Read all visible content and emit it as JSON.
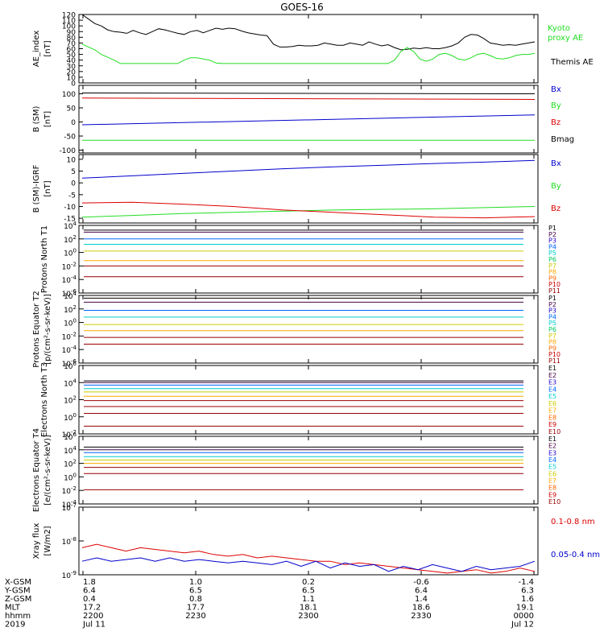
{
  "title": "GOES-16",
  "colors": {
    "black": "#000000",
    "green": "#22dd22",
    "blue": "#0000cc",
    "red": "#dd0000",
    "p_series": [
      "#000000",
      "#440044",
      "#2200cc",
      "#0066ff",
      "#00cccc",
      "#00cc66",
      "#cccc00",
      "#ffaa00",
      "#ff6600",
      "#cc0000",
      "#990000"
    ],
    "e_series": [
      "#000000",
      "#440044",
      "#2200cc",
      "#0066ff",
      "#00cccc",
      "#00cc66",
      "#cccc00",
      "#ffaa00",
      "#ff6600",
      "#cc0000",
      "#990000"
    ]
  },
  "chart_data": [
    {
      "type": "line",
      "ylabel": "AE_index [nT]",
      "ylim": [
        0,
        120
      ],
      "yticks": [
        "0",
        "10",
        "20",
        "30",
        "40",
        "50",
        "60",
        "70",
        "80",
        "90",
        "100",
        "110",
        "120"
      ],
      "series": [
        {
          "name": "Themis AE",
          "color": "black",
          "values": [
            120,
            112,
            104,
            100,
            93,
            90,
            89,
            87,
            92,
            88,
            85,
            90,
            95,
            93,
            90,
            87,
            85,
            90,
            92,
            88,
            92,
            96,
            94,
            96,
            95,
            91,
            88,
            86,
            84,
            83,
            68,
            63,
            63,
            64,
            66,
            65,
            65,
            66,
            70,
            68,
            66,
            66,
            70,
            68,
            66,
            72,
            68,
            65,
            67,
            62,
            58,
            59,
            61,
            60,
            62,
            60,
            60,
            62,
            65,
            70,
            80,
            85,
            84,
            78,
            70,
            68,
            66,
            67,
            66,
            68,
            70,
            72
          ]
        },
        {
          "name": "Kyoto proxy AE",
          "color": "green",
          "values": [
            68,
            63,
            58,
            50,
            45,
            40,
            34,
            34,
            34,
            34,
            34,
            34,
            34,
            34,
            34,
            34,
            40,
            44,
            44,
            42,
            40,
            35,
            34,
            34,
            34,
            34,
            34,
            34,
            34,
            34,
            34,
            34,
            34,
            34,
            34,
            34,
            34,
            34,
            34,
            34,
            34,
            34,
            34,
            34,
            34,
            34,
            34,
            34,
            34,
            40,
            55,
            62,
            55,
            42,
            38,
            42,
            50,
            52,
            48,
            42,
            40,
            44,
            50,
            52,
            48,
            43,
            42,
            44,
            48,
            50,
            50,
            52
          ]
        }
      ]
    },
    {
      "type": "line",
      "ylabel": "B (SM) [nT]",
      "ylim": [
        -110,
        130
      ],
      "yticks": [
        "-100",
        "-50",
        "0",
        "50",
        "100"
      ],
      "series": [
        {
          "name": "Bx",
          "color": "blue",
          "values": [
            -10,
            25
          ]
        },
        {
          "name": "By",
          "color": "green",
          "values": [
            -65,
            -65
          ]
        },
        {
          "name": "Bz",
          "color": "red",
          "values": [
            85,
            80
          ]
        },
        {
          "name": "Bmag",
          "color": "black",
          "values": [
            103,
            100
          ]
        }
      ]
    },
    {
      "type": "line",
      "ylabel": "B (SM)-IGRF [nT]",
      "ylim": [
        -17,
        12
      ],
      "yticks": [
        "-15",
        "-10",
        "-5",
        "0",
        "5",
        "10"
      ],
      "series": [
        {
          "name": "Bx",
          "color": "blue",
          "values": [
            2,
            3,
            4,
            5,
            6,
            6.8,
            7.5,
            8.2,
            8.8,
            9.5
          ]
        },
        {
          "name": "By",
          "color": "green",
          "values": [
            -14.5,
            -13.8,
            -13,
            -12.5,
            -12,
            -11.5,
            -11.2,
            -11,
            -10.5,
            -10
          ]
        },
        {
          "name": "Bz",
          "color": "red",
          "values": [
            -8.5,
            -8.2,
            -9,
            -10,
            -11.5,
            -12.5,
            -13.5,
            -14.5,
            -14.8,
            -14.3
          ]
        }
      ]
    },
    {
      "type": "line",
      "ylabel": "Protons North T1",
      "log": true,
      "ylim": [
        -6,
        4
      ],
      "yticks": [
        "10-6",
        "10-4",
        "10-2",
        "100",
        "102",
        "104"
      ],
      "legend": [
        "P1",
        "P2",
        "P3",
        "P4",
        "P5",
        "P6",
        "P7",
        "P8",
        "P9",
        "P10",
        "P11"
      ],
      "levels": [
        3.3,
        3.0,
        2.0,
        1.2,
        0.2,
        -1.2,
        -2.0,
        -3.6
      ]
    },
    {
      "type": "line",
      "ylabel": "Protons Equator T2 [p/(cm²-s-sr-keV)]",
      "log": true,
      "ylim": [
        -6,
        4
      ],
      "yticks": [
        "10-6",
        "10-4",
        "10-2",
        "100",
        "102",
        "104"
      ],
      "legend": [
        "P1",
        "P2",
        "P3",
        "P4",
        "P5",
        "P6",
        "P7",
        "P8",
        "P9",
        "P10",
        "P11"
      ],
      "levels": [
        3.6,
        3.0,
        1.8,
        0.8,
        -0.3,
        -1.2,
        -2.2,
        -3.2
      ]
    },
    {
      "type": "line",
      "ylabel": "Electrons North T3",
      "log": true,
      "ylim": [
        -2,
        6
      ],
      "yticks": [
        "10-2",
        "100",
        "102",
        "104",
        "106"
      ],
      "legend": [
        "E1",
        "E2",
        "E3",
        "E4",
        "E5",
        "E6",
        "E7",
        "E8",
        "E9",
        "E10"
      ],
      "levels": [
        4.2,
        4.0,
        3.7,
        3.3,
        2.9,
        2.4,
        1.9,
        1.2,
        0.4,
        -1.1
      ]
    },
    {
      "type": "line",
      "ylabel": "Electrons Equator T4 [e/(cm²-s-sr-keV)]",
      "log": true,
      "ylim": [
        -4,
        6
      ],
      "yticks": [
        "10-4",
        "10-2",
        "100",
        "102",
        "104",
        "106"
      ],
      "legend": [
        "E1",
        "E2",
        "E3",
        "E4",
        "E5",
        "E6",
        "E7",
        "E8",
        "E9",
        "E10"
      ],
      "levels": [
        4.4,
        4.0,
        3.6,
        3.0,
        2.5,
        2.0,
        1.4,
        0.5,
        -1.9
      ]
    },
    {
      "type": "line",
      "ylabel": "Xray flux [W/m2]",
      "log": true,
      "ylim": [
        -9,
        -7
      ],
      "yticks": [
        "10-9",
        "10-8",
        "10-7"
      ],
      "series": [
        {
          "name": "0.1-0.8 nm",
          "color": "red",
          "values": [
            -8.2,
            -8.1,
            -8.2,
            -8.3,
            -8.2,
            -8.25,
            -8.3,
            -8.35,
            -8.3,
            -8.4,
            -8.45,
            -8.4,
            -8.5,
            -8.45,
            -8.5,
            -8.55,
            -8.6,
            -8.6,
            -8.7,
            -8.65,
            -8.7,
            -8.75,
            -8.8,
            -8.85,
            -8.9,
            -8.95,
            -8.9,
            -8.85,
            -8.95,
            -8.9,
            -8.8,
            -8.9
          ]
        },
        {
          "name": "0.05-0.4 nm",
          "color": "blue",
          "values": [
            -8.6,
            -8.5,
            -8.6,
            -8.55,
            -8.5,
            -8.6,
            -8.5,
            -8.6,
            -8.55,
            -8.6,
            -8.65,
            -8.6,
            -8.65,
            -8.7,
            -8.6,
            -8.75,
            -8.6,
            -8.8,
            -8.65,
            -8.75,
            -8.7,
            -8.9,
            -8.75,
            -8.85,
            -8.7,
            -8.8,
            -8.9,
            -8.75,
            -8.85,
            -8.8,
            -8.75,
            -8.6
          ]
        }
      ]
    }
  ],
  "ephemeris": {
    "labels": [
      "X-GSM",
      "Y-GSM",
      "Z-GSM",
      "MLT",
      "hhmm",
      "2019"
    ],
    "columns": [
      [
        "1.8",
        "6.4",
        "0.4",
        "17.2",
        "2200",
        "Jul 11"
      ],
      [
        "1.0",
        "6.5",
        "0.8",
        "17.7",
        "2230",
        ""
      ],
      [
        "0.2",
        "6.5",
        "1.1",
        "18.1",
        "2300",
        ""
      ],
      [
        "-0.6",
        "6.4",
        "1.4",
        "18.6",
        "2330",
        ""
      ],
      [
        "-1.4",
        "6.3",
        "1.6",
        "19.1",
        "0000",
        "Jul 12"
      ]
    ]
  }
}
